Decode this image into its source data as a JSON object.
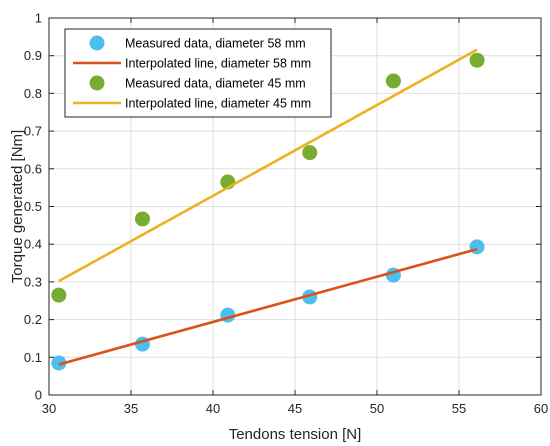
{
  "chart_data": {
    "type": "scatter",
    "title": "",
    "xlabel": "Tendons tension [N]",
    "ylabel": "Torque generated [Nm]",
    "xlim": [
      30,
      60
    ],
    "ylim": [
      0,
      1
    ],
    "xticks": [
      30,
      35,
      40,
      45,
      50,
      55,
      60
    ],
    "yticks": [
      0,
      0.1,
      0.2,
      0.3,
      0.4,
      0.5,
      0.6,
      0.7,
      0.8,
      0.9,
      1
    ],
    "grid": true,
    "legend_position": "top-left",
    "series": [
      {
        "name": "Measured data, diameter 58 mm",
        "kind": "markers",
        "color": "#4DBEEE",
        "x": [
          30.6,
          35.7,
          40.9,
          45.9,
          51.0,
          56.1
        ],
        "y": [
          0.085,
          0.135,
          0.212,
          0.26,
          0.318,
          0.393
        ]
      },
      {
        "name": "Interpolated line, diameter 58 mm",
        "kind": "line",
        "color": "#D95319",
        "x": [
          30.6,
          56.1
        ],
        "y": [
          0.081,
          0.387
        ]
      },
      {
        "name": "Measured data, diameter 45 mm",
        "kind": "markers",
        "color": "#77AC30",
        "x": [
          30.6,
          35.7,
          40.9,
          45.9,
          51.0,
          56.1
        ],
        "y": [
          0.265,
          0.467,
          0.565,
          0.643,
          0.833,
          0.888
        ]
      },
      {
        "name": "Interpolated line, diameter 45 mm",
        "kind": "line",
        "color": "#EDB120",
        "x": [
          30.6,
          56.1
        ],
        "y": [
          0.302,
          0.916
        ]
      }
    ]
  }
}
